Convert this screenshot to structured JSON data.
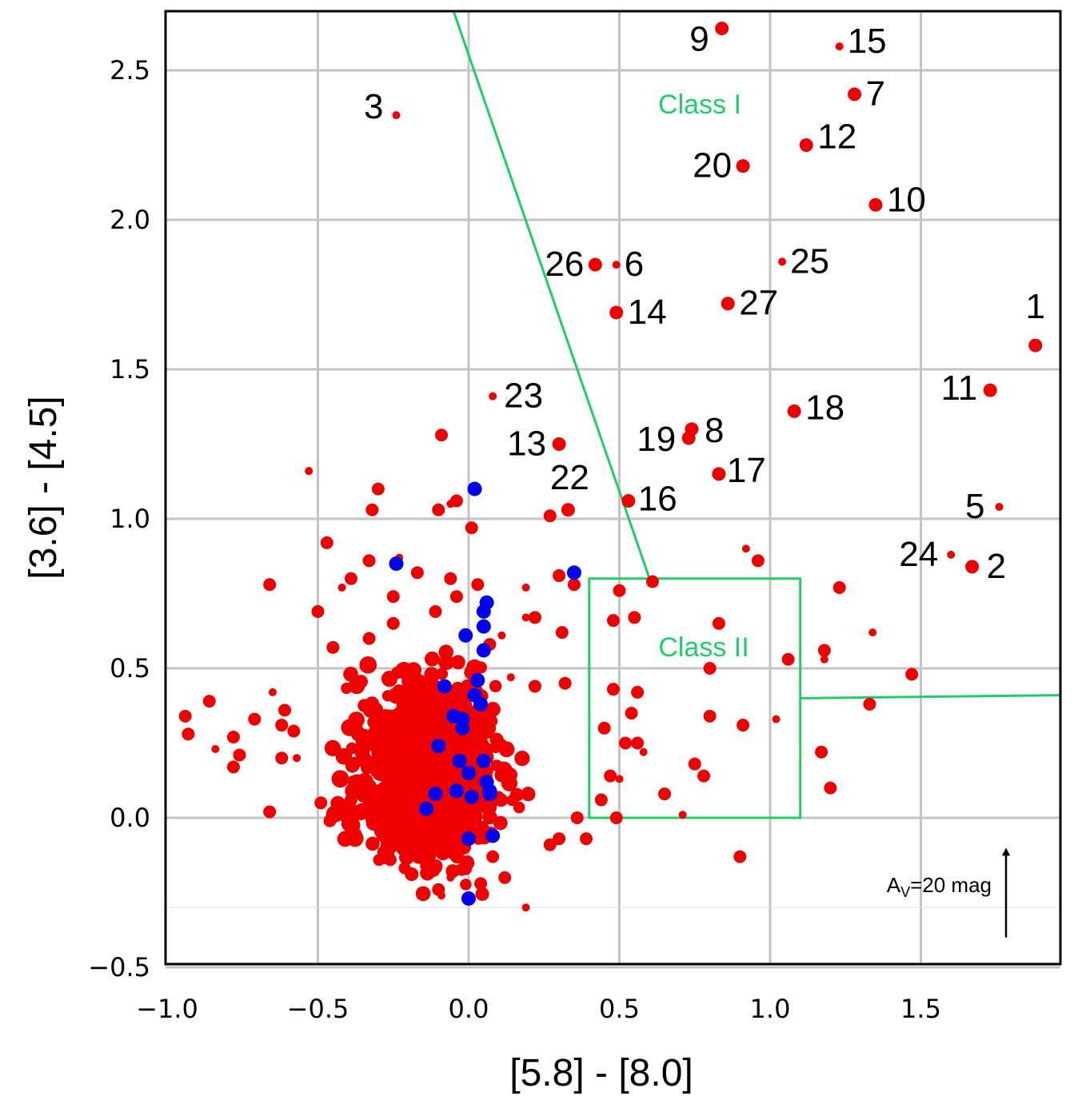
{
  "chart_data": {
    "type": "scatter",
    "title": "",
    "xlabel": "[5.8] - [8.0]",
    "ylabel": "[3.6] - [4.5]",
    "xlim": [
      -1.0,
      1.95
    ],
    "ylim": [
      -0.5,
      2.7
    ],
    "grid": true,
    "xticks": [
      -1.0,
      -0.5,
      0.0,
      0.5,
      1.0,
      1.5
    ],
    "yticks": [
      -0.5,
      0.0,
      0.5,
      1.0,
      1.5,
      2.0,
      2.5
    ],
    "xtick_labels": [
      "−1.0",
      "−0.5",
      "0.0",
      "0.5",
      "1.0",
      "1.5"
    ],
    "ytick_labels": [
      "−0.5",
      "0.0",
      "0.5",
      "1.0",
      "1.5",
      "2.0",
      "2.5"
    ],
    "series": [
      {
        "color": "#ee0000",
        "points": [
          {
            "x": 1.88,
            "y": 1.58,
            "label": "1"
          },
          {
            "x": 1.67,
            "y": 0.84,
            "label": "2"
          },
          {
            "x": -0.24,
            "y": 2.35,
            "label": "3"
          },
          {
            "x": 1.76,
            "y": 1.04,
            "label": "5"
          },
          {
            "x": 0.49,
            "y": 1.85,
            "label": "6"
          },
          {
            "x": 1.28,
            "y": 2.42,
            "label": "7"
          },
          {
            "x": 0.74,
            "y": 1.3,
            "label": "8"
          },
          {
            "x": 0.84,
            "y": 2.64,
            "label": "9"
          },
          {
            "x": 1.35,
            "y": 2.05,
            "label": "10"
          },
          {
            "x": 1.73,
            "y": 1.43,
            "label": "11"
          },
          {
            "x": 1.12,
            "y": 2.25,
            "label": "12"
          },
          {
            "x": 0.3,
            "y": 1.25,
            "label": "13"
          },
          {
            "x": 0.49,
            "y": 1.69,
            "label": "14"
          },
          {
            "x": 1.23,
            "y": 2.58,
            "label": "15"
          },
          {
            "x": 0.53,
            "y": 1.06,
            "label": "16"
          },
          {
            "x": 0.83,
            "y": 1.15,
            "label": "17"
          },
          {
            "x": 1.08,
            "y": 1.36,
            "label": "18"
          },
          {
            "x": 0.73,
            "y": 1.27,
            "label": "19"
          },
          {
            "x": 0.91,
            "y": 2.18,
            "label": "20"
          },
          {
            "x": 0.33,
            "y": 1.03,
            "label": "22"
          },
          {
            "x": 0.08,
            "y": 1.41,
            "label": "23"
          },
          {
            "x": 1.6,
            "y": 0.88,
            "label": "24"
          },
          {
            "x": 1.04,
            "y": 1.86,
            "label": "25"
          },
          {
            "x": 0.42,
            "y": 1.85,
            "label": "26"
          },
          {
            "x": 0.86,
            "y": 1.72,
            "label": "27"
          }
        ]
      },
      {
        "color": "#ee0000",
        "points": [
          {
            "x": -0.53,
            "y": 1.16
          },
          {
            "x": -0.09,
            "y": 1.28
          },
          {
            "x": -0.3,
            "y": 1.1
          },
          {
            "x": -0.32,
            "y": 1.03
          },
          {
            "x": -0.1,
            "y": 1.03
          },
          {
            "x": -0.06,
            "y": 1.05
          },
          {
            "x": -0.04,
            "y": 1.06
          },
          {
            "x": 0.01,
            "y": 0.97
          },
          {
            "x": 0.27,
            "y": 1.01
          },
          {
            "x": -0.47,
            "y": 0.92
          },
          {
            "x": -0.23,
            "y": 0.87
          },
          {
            "x": -0.33,
            "y": 0.86
          },
          {
            "x": -0.17,
            "y": 0.82
          },
          {
            "x": -0.66,
            "y": 0.78
          },
          {
            "x": -0.39,
            "y": 0.8
          },
          {
            "x": -0.42,
            "y": 0.77
          },
          {
            "x": -0.25,
            "y": 0.74
          },
          {
            "x": -0.5,
            "y": 0.69
          },
          {
            "x": -0.06,
            "y": 0.8
          },
          {
            "x": 0.03,
            "y": 0.78
          },
          {
            "x": 0.19,
            "y": 0.77
          },
          {
            "x": 0.3,
            "y": 0.81
          },
          {
            "x": 0.35,
            "y": 0.78
          },
          {
            "x": 0.5,
            "y": 0.76
          },
          {
            "x": 0.61,
            "y": 0.79
          },
          {
            "x": 0.92,
            "y": 0.9
          },
          {
            "x": 0.96,
            "y": 0.86
          },
          {
            "x": 1.23,
            "y": 0.77
          },
          {
            "x": -0.11,
            "y": 0.69
          },
          {
            "x": -0.04,
            "y": 0.74
          },
          {
            "x": 0.19,
            "y": 0.67
          },
          {
            "x": 0.22,
            "y": 0.67
          },
          {
            "x": 0.48,
            "y": 0.66
          },
          {
            "x": 0.55,
            "y": 0.67
          },
          {
            "x": 0.83,
            "y": 0.65
          },
          {
            "x": 1.34,
            "y": 0.62
          },
          {
            "x": 0.31,
            "y": 0.62
          },
          {
            "x": -0.25,
            "y": 0.65
          },
          {
            "x": -0.33,
            "y": 0.6
          },
          {
            "x": -0.45,
            "y": 0.57
          },
          {
            "x": 0.11,
            "y": 0.61
          },
          {
            "x": 0.07,
            "y": 0.58
          },
          {
            "x": 0.8,
            "y": 0.5
          },
          {
            "x": 1.06,
            "y": 0.53
          },
          {
            "x": 1.18,
            "y": 0.56
          },
          {
            "x": 1.18,
            "y": 0.53
          },
          {
            "x": 1.47,
            "y": 0.48
          },
          {
            "x": 0.32,
            "y": 0.45
          },
          {
            "x": 0.48,
            "y": 0.43
          },
          {
            "x": 0.56,
            "y": 0.42
          },
          {
            "x": 0.14,
            "y": 0.47
          },
          {
            "x": 0.22,
            "y": 0.44
          },
          {
            "x": 0.54,
            "y": 0.35
          },
          {
            "x": 0.8,
            "y": 0.34
          },
          {
            "x": 0.91,
            "y": 0.31
          },
          {
            "x": 1.02,
            "y": 0.33
          },
          {
            "x": 1.33,
            "y": 0.38
          },
          {
            "x": 0.45,
            "y": 0.3
          },
          {
            "x": 0.52,
            "y": 0.25
          },
          {
            "x": 0.56,
            "y": 0.25
          },
          {
            "x": 0.58,
            "y": 0.22
          },
          {
            "x": 0.75,
            "y": 0.18
          },
          {
            "x": 0.78,
            "y": 0.14
          },
          {
            "x": 1.17,
            "y": 0.22
          },
          {
            "x": 1.2,
            "y": 0.1
          },
          {
            "x": 0.5,
            "y": 0.13
          },
          {
            "x": 0.47,
            "y": 0.14
          },
          {
            "x": 0.65,
            "y": 0.08
          },
          {
            "x": 0.44,
            "y": 0.06
          },
          {
            "x": 0.49,
            "y": 0.0
          },
          {
            "x": 0.71,
            "y": 0.01
          },
          {
            "x": 0.9,
            "y": -0.13
          },
          {
            "x": 0.39,
            "y": -0.07
          },
          {
            "x": 0.3,
            "y": -0.07
          },
          {
            "x": 0.27,
            "y": -0.09
          },
          {
            "x": 0.19,
            "y": -0.3
          },
          {
            "x": 0.36,
            "y": 0.0
          },
          {
            "x": -0.86,
            "y": 0.39
          },
          {
            "x": -0.94,
            "y": 0.34
          },
          {
            "x": -0.93,
            "y": 0.28
          },
          {
            "x": -0.84,
            "y": 0.23
          },
          {
            "x": -0.78,
            "y": 0.27
          },
          {
            "x": -0.76,
            "y": 0.21
          },
          {
            "x": -0.78,
            "y": 0.17
          },
          {
            "x": -0.71,
            "y": 0.33
          },
          {
            "x": -0.65,
            "y": 0.42
          },
          {
            "x": -0.61,
            "y": 0.36
          },
          {
            "x": -0.62,
            "y": 0.31
          },
          {
            "x": -0.58,
            "y": 0.29
          },
          {
            "x": -0.62,
            "y": 0.2
          },
          {
            "x": -0.57,
            "y": 0.2
          },
          {
            "x": -0.66,
            "y": 0.02
          },
          {
            "x": -0.49,
            "y": 0.05
          },
          {
            "x": -0.46,
            "y": -0.01
          },
          {
            "x": -0.39,
            "y": 0.06
          },
          {
            "x": -0.26,
            "y": -0.07
          },
          {
            "x": -0.26,
            "y": -0.14
          },
          {
            "x": -0.19,
            "y": -0.11
          },
          {
            "x": -0.14,
            "y": -0.16
          },
          {
            "x": -0.1,
            "y": -0.24
          },
          {
            "x": -0.06,
            "y": -0.2
          },
          {
            "x": -0.01,
            "y": -0.17
          },
          {
            "x": 0.04,
            "y": -0.22
          },
          {
            "x": 0.12,
            "y": -0.2
          },
          {
            "x": 0.08,
            "y": -0.13
          },
          {
            "x": -0.09,
            "y": -0.26
          },
          {
            "x": -0.05,
            "y": -0.12
          },
          {
            "x": -0.2,
            "y": 0.0
          }
        ]
      },
      {
        "color": "#0000ee",
        "points": [
          {
            "x": 0.02,
            "y": 1.1
          },
          {
            "x": -0.24,
            "y": 0.85
          },
          {
            "x": 0.35,
            "y": 0.82
          },
          {
            "x": 0.06,
            "y": 0.72
          },
          {
            "x": 0.05,
            "y": 0.69
          },
          {
            "x": 0.05,
            "y": 0.64
          },
          {
            "x": -0.01,
            "y": 0.61
          },
          {
            "x": 0.05,
            "y": 0.56
          },
          {
            "x": 0.03,
            "y": 0.46
          },
          {
            "x": -0.08,
            "y": 0.44
          },
          {
            "x": 0.02,
            "y": 0.41
          },
          {
            "x": 0.04,
            "y": 0.38
          },
          {
            "x": -0.05,
            "y": 0.34
          },
          {
            "x": -0.02,
            "y": 0.33
          },
          {
            "x": -0.02,
            "y": 0.3
          },
          {
            "x": -0.1,
            "y": 0.24
          },
          {
            "x": -0.03,
            "y": 0.19
          },
          {
            "x": 0.05,
            "y": 0.19
          },
          {
            "x": 0.0,
            "y": 0.15
          },
          {
            "x": 0.06,
            "y": 0.12
          },
          {
            "x": 0.07,
            "y": 0.09
          },
          {
            "x": -0.04,
            "y": 0.09
          },
          {
            "x": 0.01,
            "y": 0.07
          },
          {
            "x": 0.07,
            "y": 0.08
          },
          {
            "x": -0.11,
            "y": 0.08
          },
          {
            "x": -0.14,
            "y": 0.03
          },
          {
            "x": 0.0,
            "y": -0.07
          },
          {
            "x": 0.08,
            "y": -0.06
          },
          {
            "x": 0.0,
            "y": -0.27
          }
        ]
      }
    ],
    "regions": [
      {
        "label": "Class I",
        "color": "#22cc66"
      },
      {
        "label": "Class II",
        "color": "#22cc66"
      }
    ],
    "reddening_vector": {
      "label_main": "A",
      "label_sub": "V",
      "label_rest": "=20 mag",
      "delta_y": 0.3
    }
  }
}
